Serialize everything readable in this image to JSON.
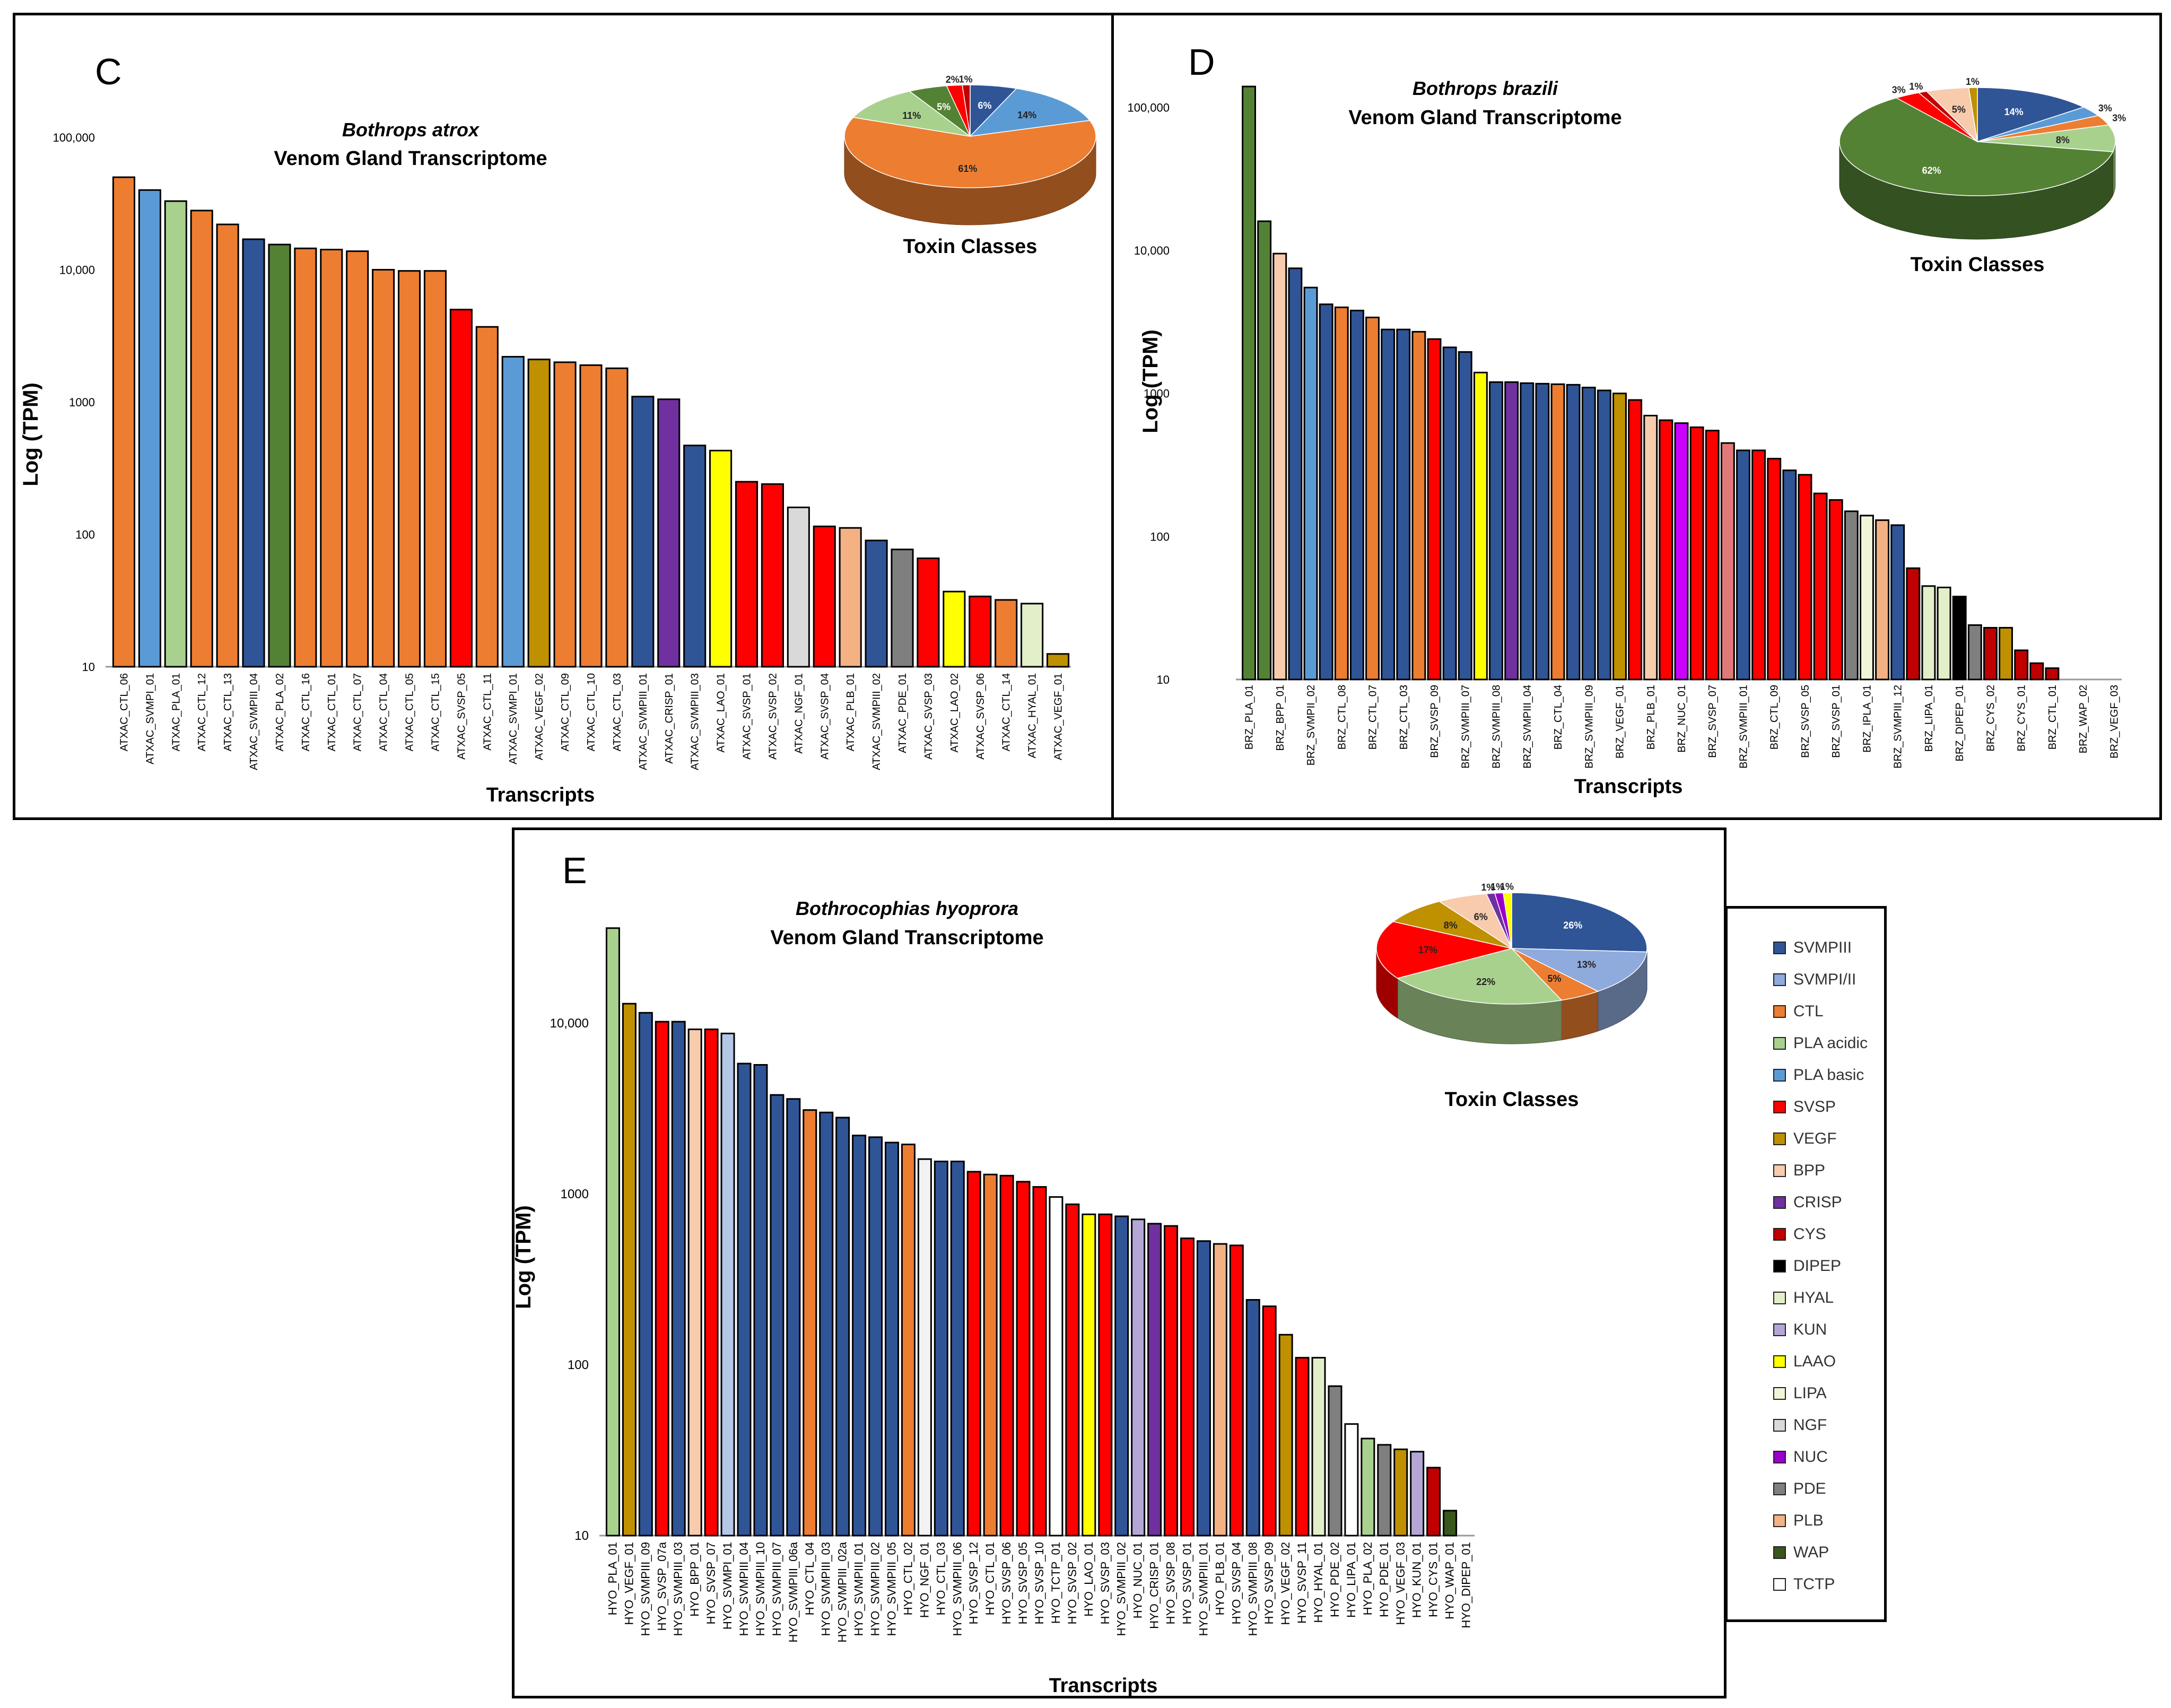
{
  "colors": {
    "SVMPIII": "#2f5597",
    "SVMPI/II": "#8faadc",
    "CTL": "#ed7d31",
    "PLA acidic": "#a9d18e",
    "PLA basic": "#5b9bd5",
    "SVSP": "#ff0000",
    "VEGF": "#bf9000",
    "BPP": "#f8cbad",
    "CRISP": "#7030a0",
    "CYS": "#c00000",
    "DIPEP": "#000000",
    "HYAL": "#e2efc9",
    "KUN": "#b4a7d6",
    "LAAO": "#ffff00",
    "LIPA": "#f2f5d8",
    "NGF": "#d9d9d9",
    "NUC": "#9900cc",
    "PDE": "#7f7f7f",
    "PLB": "#f4b183",
    "WAP": "#38571a",
    "TCTP": "#ffffff",
    "SVMPI": "#5b9bd5",
    "PLA": "#a9d18e",
    "PLA2": "#548235",
    "BRZPLA": "#548235",
    "NUCpurple": "#cc00ff",
    "SVSPpink": "#e07a7a"
  },
  "legend": {
    "items": [
      {
        "label": "SVMPIII",
        "color": "#2f5597"
      },
      {
        "label": "SVMPI/II",
        "color": "#8faadc"
      },
      {
        "label": "CTL",
        "color": "#ed7d31"
      },
      {
        "label": "PLA acidic",
        "color": "#a9d18e"
      },
      {
        "label": "PLA basic",
        "color": "#5b9bd5"
      },
      {
        "label": "SVSP",
        "color": "#ff0000"
      },
      {
        "label": "VEGF",
        "color": "#bf9000"
      },
      {
        "label": "BPP",
        "color": "#f8cbad"
      },
      {
        "label": "CRISP",
        "color": "#7030a0"
      },
      {
        "label": "CYS",
        "color": "#c00000"
      },
      {
        "label": "DIPEP",
        "color": "#000000"
      },
      {
        "label": "HYAL",
        "color": "#e2efc9"
      },
      {
        "label": "KUN",
        "color": "#b4a7d6"
      },
      {
        "label": "LAAO",
        "color": "#ffff00"
      },
      {
        "label": "LIPA",
        "color": "#f2f5d8"
      },
      {
        "label": "NGF",
        "color": "#d9d9d9"
      },
      {
        "label": "NUC",
        "color": "#9900cc"
      },
      {
        "label": "PDE",
        "color": "#7f7f7f"
      },
      {
        "label": "PLB",
        "color": "#f4b183"
      },
      {
        "label": "WAP",
        "color": "#38571a"
      },
      {
        "label": "TCTP",
        "color": "#ffffff"
      }
    ]
  },
  "chart_data": [
    {
      "panel": "C",
      "type": "bar",
      "title_species": "Bothrops atrox",
      "title": "Venom Gland Transcriptome",
      "xlabel": "Transcripts",
      "ylabel": "Log (TPM)",
      "yscale": "log",
      "ylim": [
        10,
        100000
      ],
      "yticks": [
        10,
        100,
        1000,
        10000,
        100000
      ],
      "ytick_labels": [
        "10",
        "100",
        "1000",
        "10,000",
        "100,000"
      ],
      "categories": [
        "ATXAC_CTL_06",
        "ATXAC_SVMPI_01",
        "ATXAC_PLA_01",
        "ATXAC_CTL_12",
        "ATXAC_CTL_13",
        "ATXAC_SVMPIII_04",
        "ATXAC_PLA_02",
        "ATXAC_CTL_16",
        "ATXAC_CTL_01",
        "ATXAC_CTL_07",
        "ATXAC_CTL_04",
        "ATXAC_CTL_05",
        "ATXAC_CTL_15",
        "ATXAC_SVSP_05",
        "ATXAC_CTL_11",
        "ATXAC_SVMPI_01",
        "ATXAC_VEGF_02",
        "ATXAC_CTL_09",
        "ATXAC_CTL_10",
        "ATXAC_CTL_03",
        "ATXAC_SVMPIII_01",
        "ATXAC_CRISP_01",
        "ATXAC_SVMPIII_03",
        "ATXAC_LAO_01",
        "ATXAC_SVSP_01",
        "ATXAC_SVSP_02",
        "ATXAC_NGF_01",
        "ATXAC_SVSP_04",
        "ATXAC_PLB_01",
        "ATXAC_SVMPIII_02",
        "ATXAC_PDE_01",
        "ATXAC_SVSP_03",
        "ATXAC_LAO_02",
        "ATXAC_SVSP_06",
        "ATXAC_CTL_14",
        "ATXAC_HYAL_01",
        "ATXAC_VEGF_01"
      ],
      "values": [
        50000,
        40000,
        33000,
        28000,
        22000,
        17000,
        15500,
        14500,
        14200,
        13800,
        10000,
        9800,
        9800,
        5000,
        3700,
        2200,
        2100,
        2000,
        1900,
        1800,
        1100,
        1050,
        470,
        430,
        250,
        240,
        160,
        115,
        112,
        90,
        77,
        66,
        37,
        34,
        32,
        30,
        12.5
      ],
      "colors": [
        "#ed7d31",
        "#5b9bd5",
        "#a9d18e",
        "#ed7d31",
        "#ed7d31",
        "#2f5597",
        "#548235",
        "#ed7d31",
        "#ed7d31",
        "#ed7d31",
        "#ed7d31",
        "#ed7d31",
        "#ed7d31",
        "#ff0000",
        "#ed7d31",
        "#5b9bd5",
        "#bf9000",
        "#ed7d31",
        "#ed7d31",
        "#ed7d31",
        "#2f5597",
        "#7030a0",
        "#2f5597",
        "#ffff00",
        "#ff0000",
        "#ff0000",
        "#d9d9d9",
        "#ff0000",
        "#f4b183",
        "#2f5597",
        "#7f7f7f",
        "#ff0000",
        "#ffff00",
        "#ff0000",
        "#ed7d31",
        "#e2efc9",
        "#bf9000"
      ],
      "pie": {
        "title": "Toxin Classes",
        "slices": [
          {
            "label": "6%",
            "value": 6,
            "color": "#2f5597"
          },
          {
            "label": "14%",
            "value": 14,
            "color": "#5b9bd5"
          },
          {
            "label": "61%",
            "value": 61,
            "color": "#ed7d31"
          },
          {
            "label": "11%",
            "value": 11,
            "color": "#a9d18e"
          },
          {
            "label": "5%",
            "value": 5,
            "color": "#548235"
          },
          {
            "label": "2%",
            "value": 2,
            "color": "#ff0000"
          },
          {
            "label": "1%",
            "value": 1,
            "color": "#c00000"
          }
        ]
      }
    },
    {
      "panel": "D",
      "type": "bar",
      "title_species": "Bothrops brazili",
      "title": "Venom Gland Transcriptome",
      "xlabel": "Transcripts",
      "ylabel": "Log (TPM)",
      "yscale": "log",
      "ylim": [
        10,
        150000
      ],
      "yticks": [
        10,
        100,
        1000,
        10000,
        100000
      ],
      "ytick_labels": [
        "10",
        "100",
        "1000",
        "10,000",
        "100,000"
      ],
      "categories": [
        "BRZ_PLA_01",
        "",
        "BRZ_BPP_01",
        "",
        "BRZ_SVMPII_02",
        "",
        "BRZ_CTL_08",
        "",
        "BRZ_CTL_07",
        "",
        "BRZ_CTL_03",
        "",
        "BRZ_SVSP_09",
        "",
        "BRZ_SVMPIII_07",
        "",
        "BRZ_SVMPIII_08",
        "",
        "BRZ_SVMPIII_04",
        "",
        "BRZ_CTL_04",
        "",
        "BRZ_SVMPIII_09",
        "",
        "BRZ_VEGF_01",
        "",
        "BRZ_PLB_01",
        "",
        "BRZ_NUC_01",
        "",
        "BRZ_SVSP_07",
        "",
        "BRZ_SVMPIII_01",
        "",
        "BRZ_CTL_09",
        "",
        "BRZ_SVSP_05",
        "",
        "BRZ_SVSP_01",
        "",
        "BRZ_IPLA_01",
        "",
        "BRZ_SVMPIII_12",
        "",
        "BRZ_LIPA_01",
        "",
        "BRZ_DIPEP_01",
        "",
        "BRZ_CYS_02",
        "",
        "BRZ_CYS_01",
        "",
        "BRZ_CTL_01",
        "",
        "BRZ_WAP_02",
        "",
        "BRZ_VEGF_03"
      ],
      "values": [
        140000,
        16000,
        9500,
        7500,
        5500,
        4200,
        4000,
        3800,
        3400,
        2800,
        2800,
        2700,
        2400,
        2100,
        1950,
        1400,
        1200,
        1200,
        1180,
        1170,
        1160,
        1150,
        1100,
        1050,
        1000,
        900,
        700,
        650,
        620,
        580,
        550,
        450,
        400,
        400,
        350,
        290,
        270,
        200,
        180,
        150,
        140,
        130,
        120,
        60,
        45,
        44,
        38,
        24,
        23,
        23,
        16,
        13,
        12,
        10,
        10,
        10,
        10
      ],
      "colors": [
        "#548235",
        "#548235",
        "#f8cbad",
        "#2f5597",
        "#5b9bd5",
        "#2f5597",
        "#ed7d31",
        "#2f5597",
        "#ed7d31",
        "#2f5597",
        "#2f5597",
        "#ed7d31",
        "#ff0000",
        "#2f5597",
        "#2f5597",
        "#ffff00",
        "#2f5597",
        "#7030a0",
        "#2f5597",
        "#2f5597",
        "#ed7d31",
        "#2f5597",
        "#2f5597",
        "#2f5597",
        "#bf9000",
        "#ff0000",
        "#f8cbad",
        "#ff0000",
        "#cc00ff",
        "#ff0000",
        "#ff0000",
        "#e07a7a",
        "#2f5597",
        "#ff0000",
        "#ff0000",
        "#2f5597",
        "#ff0000",
        "#ff0000",
        "#ff0000",
        "#7f7f7f",
        "#f2f5d8",
        "#f4b183",
        "#2f5597",
        "#c00000",
        "#e2efc9",
        "#e2efc9",
        "#000000",
        "#7f7f7f",
        "#c00000",
        "#bf9000",
        "#c00000",
        "#c00000",
        "#c00000",
        "#ffffff",
        "#ffffff",
        "#ffffff",
        "#ffffff"
      ],
      "pie": {
        "title": "Toxin Classes",
        "slices": [
          {
            "label": "14%",
            "value": 14,
            "color": "#2f5597"
          },
          {
            "label": "3%",
            "value": 3,
            "color": "#5b9bd5"
          },
          {
            "label": "3%",
            "value": 3,
            "color": "#ed7d31"
          },
          {
            "label": "8%",
            "value": 8,
            "color": "#a9d18e"
          },
          {
            "label": "62%",
            "value": 62,
            "color": "#548235"
          },
          {
            "label": "3%",
            "value": 3,
            "color": "#ff0000"
          },
          {
            "label": "1%",
            "value": 1,
            "color": "#c00000"
          },
          {
            "label": "5%",
            "value": 5,
            "color": "#f8cbad"
          },
          {
            "label": "1%",
            "value": 1,
            "color": "#bf9000"
          }
        ]
      }
    },
    {
      "panel": "E",
      "type": "bar",
      "title_species": "Bothrocophias hyoprora",
      "title": "Venom Gland Transcriptome",
      "xlabel": "Transcripts",
      "ylabel": "Log (TPM)",
      "yscale": "log",
      "ylim": [
        10,
        40000
      ],
      "yticks": [
        10,
        100,
        1000,
        10000
      ],
      "ytick_labels": [
        "10",
        "100",
        "1000",
        "10,000"
      ],
      "categories": [
        "HYO_PLA_01",
        "HYO_VEGF_01",
        "HYO_SVMPIII_09",
        "HYO_SVSP_07a",
        "HYO_SVMPIII_03",
        "HYO_BPP_01",
        "HYO_SVSP_07",
        "HYO_SVMPI_01",
        "HYO_SVMPIII_04",
        "HYO_SVMPIII_10",
        "HYO_SVMPIII_07",
        "HYO_SVMPIII_06a",
        "HYO_CTL_04",
        "HYO_SVMPIII_03",
        "HYO_SVMPIII_02a",
        "HYO_SVMPIII_01",
        "HYO_SVMPIII_02",
        "HYO_SVMPIII_05",
        "HYO_CTL_02",
        "HYO_NGF_01",
        "HYO_CTL_03",
        "HYO_SVMPIII_06",
        "HYO_SVSP_12",
        "HYO_CTL_01",
        "HYO_SVSP_06",
        "HYO_SVSP_05",
        "HYO_SVSP_10",
        "HYO_TCTP_01",
        "HYO_SVSP_02",
        "HYO_LAO_01",
        "HYO_SVSP_03",
        "HYO_SVMPIII_02",
        "HYO_NUC_01",
        "HYO_CRISP_01",
        "HYO_SVSP_08",
        "HYO_SVSP_01",
        "HYO_SVMPIII_01",
        "HYO_PLB_01",
        "HYO_SVSP_04",
        "HYO_SVMPIII_08",
        "HYO_SVSP_09",
        "HYO_VEGF_02",
        "HYO_SVSP_11",
        "HYO_HYAL_01",
        "HYO_PDE_02",
        "HYO_LIPA_01",
        "HYO_PLA_02",
        "HYO_PDE_01",
        "HYO_VEGF_03",
        "HYO_KUN_01",
        "HYO_CYS_01",
        "HYO_WAP_01",
        "HYO_DIPEP_01"
      ],
      "values": [
        36000,
        13000,
        11500,
        10200,
        10200,
        9200,
        9200,
        8700,
        5800,
        5700,
        3800,
        3600,
        3100,
        3000,
        2800,
        2200,
        2150,
        2000,
        1950,
        1600,
        1550,
        1550,
        1350,
        1300,
        1280,
        1180,
        1100,
        960,
        870,
        760,
        760,
        740,
        710,
        670,
        650,
        550,
        530,
        510,
        500,
        240,
        220,
        150,
        110,
        110,
        75,
        45,
        37,
        34,
        32,
        31,
        25,
        14,
        10
      ],
      "colors": [
        "#a9d18e",
        "#bf9000",
        "#2f5597",
        "#ff0000",
        "#2f5597",
        "#f8cbad",
        "#ff0000",
        "#b4c7e7",
        "#2f5597",
        "#2f5597",
        "#2f5597",
        "#2f5597",
        "#ed7d31",
        "#2f5597",
        "#2f5597",
        "#2f5597",
        "#2f5597",
        "#2f5597",
        "#ed7d31",
        "#f2f2f2",
        "#2f5597",
        "#2f5597",
        "#ff0000",
        "#ed7d31",
        "#ff0000",
        "#ff0000",
        "#ff0000",
        "#ffffff",
        "#ff0000",
        "#ffff00",
        "#ff0000",
        "#2f5597",
        "#b4a7d6",
        "#7030a0",
        "#ff0000",
        "#ff0000",
        "#2f5597",
        "#f4b183",
        "#ff0000",
        "#2f5597",
        "#ff0000",
        "#bf9000",
        "#ff0000",
        "#e2efc9",
        "#7f7f7f",
        "#ffffff",
        "#a9d18e",
        "#7f7f7f",
        "#bf9000",
        "#b4a7d6",
        "#c00000",
        "#38571a",
        "#ffffff"
      ],
      "pie": {
        "title": "Toxin Classes",
        "slices": [
          {
            "label": "26%",
            "value": 26,
            "color": "#2f5597"
          },
          {
            "label": "13%",
            "value": 13,
            "color": "#8faadc"
          },
          {
            "label": "5%",
            "value": 5,
            "color": "#ed7d31"
          },
          {
            "label": "22%",
            "value": 22,
            "color": "#a9d18e"
          },
          {
            "label": "17%",
            "value": 17,
            "color": "#ff0000"
          },
          {
            "label": "8%",
            "value": 8,
            "color": "#bf9000"
          },
          {
            "label": "6%",
            "value": 6,
            "color": "#f8cbad"
          },
          {
            "label": "1%",
            "value": 1,
            "color": "#7030a0"
          },
          {
            "label": "1%",
            "value": 1,
            "color": "#9900cc"
          },
          {
            "label": "1%",
            "value": 1,
            "color": "#ffff00"
          }
        ]
      }
    }
  ]
}
